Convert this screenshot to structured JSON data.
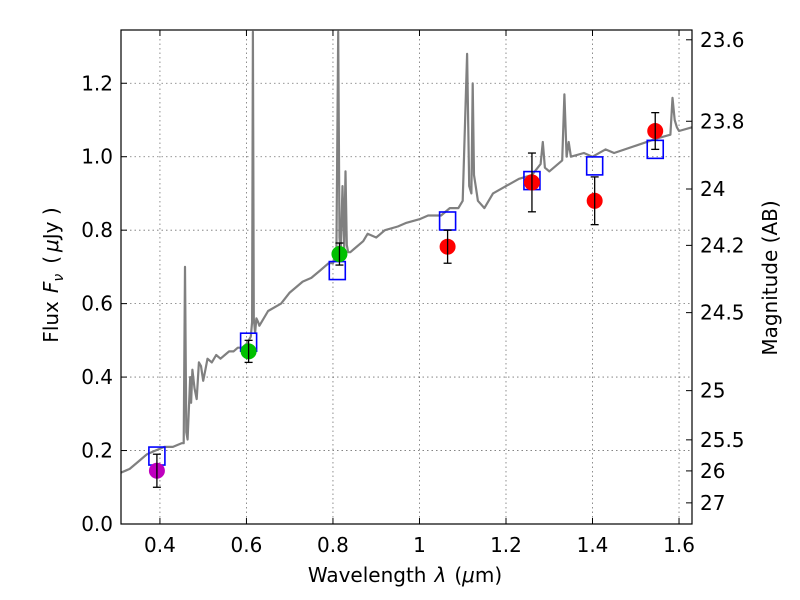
{
  "chart_data": {
    "type": "scatter",
    "xlabel": "Wavelength",
    "xlabel_symbol": "λ",
    "xlabel_unit_open": "(",
    "xlabel_unit_mu": "μ",
    "xlabel_unit_rest": "m)",
    "ylabel": "Flux",
    "ylabel_symbol": "F",
    "ylabel_subscript": "ν",
    "ylabel_unit_open": "(",
    "ylabel_unit_mu": "μ",
    "ylabel_unit_rest": "Jy )",
    "y2label": "Magnitude (AB)",
    "xlim": [
      0.31,
      1.63
    ],
    "ylim": [
      0.0,
      1.345
    ],
    "x_ticks": [
      0.4,
      0.6,
      0.8,
      1.0,
      1.2,
      1.4,
      1.6
    ],
    "x_tick_labels": [
      "0.4",
      "0.6",
      "0.8",
      "1",
      "1.2",
      "1.4",
      "1.6"
    ],
    "y_ticks": [
      0.0,
      0.2,
      0.4,
      0.6,
      0.8,
      1.0,
      1.2
    ],
    "y_tick_labels": [
      "0.0",
      "0.2",
      "0.4",
      "0.6",
      "0.8",
      "1.0",
      "1.2"
    ],
    "y2_ticks": [
      {
        "label": "23.6",
        "mag": 23.6
      },
      {
        "label": "23.8",
        "mag": 23.8
      },
      {
        "label": "24",
        "mag": 24.0
      },
      {
        "label": "24.2",
        "mag": 24.2
      },
      {
        "label": "24.5",
        "mag": 24.5
      },
      {
        "label": "25",
        "mag": 25.0
      },
      {
        "label": "25.5",
        "mag": 25.5
      },
      {
        "label": "26",
        "mag": 26.0
      },
      {
        "label": "27",
        "mag": 27.0
      }
    ],
    "grid": true,
    "colors": {
      "spectrum": "#808080",
      "model": "#0000ff",
      "magenta": "#bf00bf",
      "green": "#00c000",
      "red": "#ff0000",
      "errorbar": "#000000"
    },
    "series": [
      {
        "name": "model spectrum",
        "kind": "line",
        "x": [
          0.31,
          0.33,
          0.35,
          0.37,
          0.39,
          0.41,
          0.43,
          0.45,
          0.455,
          0.458,
          0.461,
          0.464,
          0.47,
          0.472,
          0.475,
          0.48,
          0.485,
          0.49,
          0.495,
          0.5,
          0.505,
          0.51,
          0.52,
          0.53,
          0.54,
          0.55,
          0.56,
          0.57,
          0.58,
          0.59,
          0.6,
          0.605,
          0.61,
          0.613,
          0.615,
          0.617,
          0.62,
          0.623,
          0.627,
          0.63,
          0.65,
          0.68,
          0.7,
          0.73,
          0.75,
          0.77,
          0.79,
          0.8,
          0.808,
          0.812,
          0.815,
          0.818,
          0.822,
          0.826,
          0.829,
          0.832,
          0.835,
          0.84,
          0.85,
          0.87,
          0.88,
          0.9,
          0.92,
          0.95,
          0.97,
          1.0,
          1.02,
          1.05,
          1.07,
          1.09,
          1.1,
          1.11,
          1.115,
          1.12,
          1.123,
          1.126,
          1.13,
          1.135,
          1.15,
          1.17,
          1.2,
          1.23,
          1.26,
          1.28,
          1.285,
          1.29,
          1.3,
          1.33,
          1.335,
          1.34,
          1.345,
          1.35,
          1.38,
          1.4,
          1.43,
          1.45,
          1.5,
          1.55,
          1.58,
          1.585,
          1.59,
          1.595,
          1.6,
          1.63
        ],
        "y": [
          0.14,
          0.15,
          0.17,
          0.19,
          0.2,
          0.21,
          0.21,
          0.22,
          0.22,
          0.7,
          0.25,
          0.23,
          0.4,
          0.33,
          0.42,
          0.37,
          0.34,
          0.44,
          0.43,
          0.39,
          0.42,
          0.45,
          0.44,
          0.46,
          0.45,
          0.46,
          0.47,
          0.47,
          0.48,
          0.48,
          0.49,
          0.5,
          0.51,
          0.55,
          1.34,
          0.56,
          0.52,
          0.56,
          0.55,
          0.54,
          0.58,
          0.6,
          0.63,
          0.66,
          0.67,
          0.69,
          0.71,
          0.71,
          0.74,
          1.34,
          0.78,
          0.74,
          0.92,
          0.75,
          0.96,
          0.76,
          0.74,
          0.74,
          0.75,
          0.77,
          0.79,
          0.78,
          0.8,
          0.81,
          0.82,
          0.83,
          0.84,
          0.84,
          0.86,
          0.86,
          0.88,
          1.28,
          0.92,
          0.9,
          1.2,
          0.95,
          0.92,
          0.88,
          0.86,
          0.9,
          0.92,
          0.94,
          0.95,
          0.98,
          1.04,
          0.97,
          0.96,
          0.99,
          1.17,
          1.0,
          1.04,
          1.0,
          1.01,
          1.0,
          1.02,
          1.01,
          1.03,
          1.05,
          1.06,
          1.16,
          1.1,
          1.08,
          1.07,
          1.08
        ]
      },
      {
        "name": "model photometry",
        "kind": "open-square",
        "x": [
          0.393,
          0.605,
          0.81,
          1.065,
          1.26,
          1.405,
          1.545
        ],
        "y": [
          0.185,
          0.495,
          0.69,
          0.825,
          0.935,
          0.975,
          1.02
        ]
      },
      {
        "name": "observed",
        "kind": "filled-circle",
        "points": [
          {
            "x": 0.393,
            "y": 0.145,
            "err": 0.045,
            "color": "magenta"
          },
          {
            "x": 0.605,
            "y": 0.47,
            "err": 0.03,
            "color": "green"
          },
          {
            "x": 0.815,
            "y": 0.735,
            "err": 0.03,
            "color": "green"
          },
          {
            "x": 1.065,
            "y": 0.755,
            "err": 0.045,
            "color": "red"
          },
          {
            "x": 1.26,
            "y": 0.93,
            "err": 0.08,
            "color": "red"
          },
          {
            "x": 1.405,
            "y": 0.88,
            "err": 0.065,
            "color": "red"
          },
          {
            "x": 1.545,
            "y": 1.07,
            "err": 0.05,
            "color": "red"
          }
        ]
      }
    ]
  }
}
